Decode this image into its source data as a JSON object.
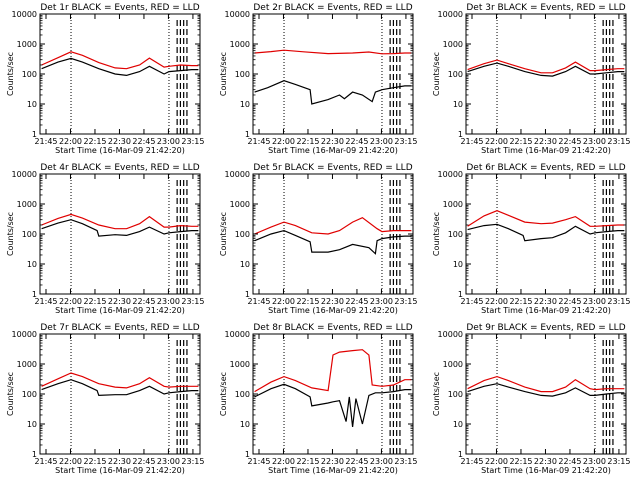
{
  "colors": {
    "events": "#000000",
    "lld": "#e00000",
    "axes": "#000000",
    "background": "#ffffff"
  },
  "chart_data": [
    {
      "type": "line",
      "title": "Det 1r BLACK = Events, RED = LLD",
      "xlabel": "Start Time (16-Mar-09 21:42:20)",
      "ylabel": "Counts/sec",
      "yscale": "log",
      "ylim": [
        1,
        10000
      ],
      "xlim_minutes": [
        -1,
        97
      ],
      "x_tick_labels": [
        "21:45",
        "22:00",
        "22:15",
        "22:30",
        "22:45",
        "23:00",
        "23:15"
      ],
      "y_tick_labels": [
        "1",
        "10",
        "100",
        "1000",
        "10000"
      ],
      "vlines_dotted": [
        18,
        78
      ],
      "dashed_minutes": [
        83,
        85,
        87,
        89
      ],
      "series": [
        {
          "name": "BLACK = Events",
          "x": [
            0,
            10,
            18,
            25,
            35,
            45,
            52,
            60,
            66,
            75,
            78,
            85,
            92,
            96
          ],
          "y": [
            150,
            250,
            330,
            250,
            150,
            100,
            90,
            120,
            180,
            100,
            120,
            130,
            140,
            140
          ]
        },
        {
          "name": "RED = LLD",
          "x": [
            0,
            10,
            18,
            25,
            35,
            45,
            52,
            60,
            66,
            75,
            78,
            85,
            92,
            96
          ],
          "y": [
            200,
            350,
            550,
            420,
            240,
            160,
            150,
            200,
            340,
            170,
            180,
            200,
            190,
            190
          ]
        }
      ]
    },
    {
      "type": "line",
      "title": "Det 2r BLACK = Events, RED = LLD",
      "xlabel": "Start Time (16-Mar-09 21:42:20)",
      "ylabel": "Counts/sec",
      "yscale": "log",
      "ylim": [
        1,
        10000
      ],
      "xlim_minutes": [
        -1,
        97
      ],
      "x_tick_labels": [
        "21:45",
        "22:00",
        "22:15",
        "22:30",
        "22:45",
        "23:00",
        "23:15"
      ],
      "y_tick_labels": [
        "1",
        "10",
        "100",
        "1000",
        "10000"
      ],
      "vlines_dotted": [
        18,
        78
      ],
      "dashed_minutes": [
        83,
        85,
        87,
        89
      ],
      "series": [
        {
          "name": "BLACK = Events",
          "x": [
            0,
            8,
            18,
            25,
            34,
            35,
            45,
            52,
            55,
            60,
            66,
            72,
            74,
            78,
            85,
            92,
            96
          ],
          "y": [
            25,
            35,
            60,
            45,
            30,
            10,
            14,
            20,
            15,
            25,
            20,
            12,
            25,
            30,
            35,
            40,
            40
          ]
        },
        {
          "name": "RED = LLD",
          "x": [
            0,
            10,
            18,
            30,
            45,
            60,
            70,
            78,
            85,
            92,
            96
          ],
          "y": [
            500,
            560,
            620,
            550,
            480,
            500,
            540,
            470,
            480,
            500,
            500
          ]
        }
      ]
    },
    {
      "type": "line",
      "title": "Det 3r BLACK = Events, RED = LLD",
      "xlabel": "Start Time (16-Mar-09 21:42:20)",
      "ylabel": "Counts/sec",
      "yscale": "log",
      "ylim": [
        1,
        10000
      ],
      "xlim_minutes": [
        -1,
        97
      ],
      "x_tick_labels": [
        "21:45",
        "22:00",
        "22:15",
        "22:30",
        "22:45",
        "23:00",
        "23:15"
      ],
      "y_tick_labels": [
        "1",
        "10",
        "100",
        "1000",
        "10000"
      ],
      "vlines_dotted": [
        18,
        78
      ],
      "dashed_minutes": [
        83,
        85,
        87,
        89
      ],
      "series": [
        {
          "name": "BLACK = Events",
          "x": [
            0,
            10,
            18,
            25,
            35,
            45,
            52,
            60,
            66,
            75,
            78,
            85,
            92,
            96
          ],
          "y": [
            120,
            180,
            230,
            180,
            120,
            90,
            85,
            120,
            180,
            100,
            100,
            110,
            120,
            120
          ]
        },
        {
          "name": "RED = LLD",
          "x": [
            0,
            10,
            18,
            25,
            35,
            45,
            52,
            60,
            66,
            75,
            78,
            85,
            92,
            96
          ],
          "y": [
            140,
            220,
            290,
            220,
            150,
            110,
            110,
            160,
            250,
            130,
            130,
            140,
            150,
            150
          ]
        }
      ]
    },
    {
      "type": "line",
      "title": "Det 4r BLACK = Events, RED = LLD",
      "xlabel": "Start Time (16-Mar-09 21:42:20)",
      "ylabel": "Counts/sec",
      "yscale": "log",
      "ylim": [
        1,
        10000
      ],
      "xlim_minutes": [
        -1,
        97
      ],
      "x_tick_labels": [
        "21:45",
        "22:00",
        "22:15",
        "22:30",
        "22:45",
        "23:00",
        "23:15"
      ],
      "y_tick_labels": [
        "1",
        "10",
        "100",
        "1000",
        "10000"
      ],
      "vlines_dotted": [
        18,
        78
      ],
      "dashed_minutes": [
        83,
        85,
        87,
        89
      ],
      "series": [
        {
          "name": "BLACK = Events",
          "x": [
            0,
            10,
            18,
            25,
            34,
            35,
            45,
            52,
            60,
            66,
            75,
            78,
            85,
            92,
            96
          ],
          "y": [
            150,
            230,
            300,
            220,
            130,
            85,
            95,
            90,
            120,
            170,
            100,
            110,
            120,
            130,
            130
          ]
        },
        {
          "name": "RED = LLD",
          "x": [
            0,
            10,
            18,
            25,
            35,
            45,
            52,
            60,
            66,
            75,
            78,
            85,
            92,
            96
          ],
          "y": [
            200,
            330,
            450,
            340,
            200,
            150,
            150,
            220,
            380,
            170,
            170,
            190,
            180,
            180
          ]
        }
      ]
    },
    {
      "type": "line",
      "title": "Det 5r BLACK = Events, RED = LLD",
      "xlabel": "Start Time (16-Mar-09 21:42:20)",
      "ylabel": "Counts/sec",
      "yscale": "log",
      "ylim": [
        1,
        10000
      ],
      "xlim_minutes": [
        -1,
        97
      ],
      "x_tick_labels": [
        "21:45",
        "22:00",
        "22:15",
        "22:30",
        "22:45",
        "23:00",
        "23:15"
      ],
      "y_tick_labels": [
        "1",
        "10",
        "100",
        "1000",
        "10000"
      ],
      "vlines_dotted": [
        18,
        78
      ],
      "dashed_minutes": [
        83,
        85,
        87,
        89
      ],
      "series": [
        {
          "name": "BLACK = Events",
          "x": [
            0,
            10,
            18,
            25,
            34,
            35,
            45,
            52,
            60,
            70,
            74,
            75,
            78,
            85,
            92,
            96
          ],
          "y": [
            60,
            100,
            130,
            90,
            55,
            25,
            25,
            30,
            45,
            35,
            22,
            60,
            70,
            80,
            85,
            85
          ]
        },
        {
          "name": "RED = LLD",
          "x": [
            0,
            10,
            18,
            25,
            35,
            45,
            52,
            60,
            66,
            75,
            78,
            85,
            92,
            96
          ],
          "y": [
            100,
            170,
            250,
            190,
            110,
            100,
            130,
            250,
            350,
            150,
            120,
            130,
            130,
            130
          ]
        }
      ]
    },
    {
      "type": "line",
      "title": "Det 6r BLACK = Events, RED = LLD",
      "xlabel": "Start Time (16-Mar-09 21:42:20)",
      "ylabel": "Counts/sec",
      "yscale": "log",
      "ylim": [
        1,
        10000
      ],
      "xlim_minutes": [
        -1,
        97
      ],
      "x_tick_labels": [
        "21:45",
        "22:00",
        "22:15",
        "22:30",
        "22:45",
        "23:00",
        "23:15"
      ],
      "y_tick_labels": [
        "1",
        "10",
        "100",
        "1000",
        "10000"
      ],
      "vlines_dotted": [
        18,
        78
      ],
      "dashed_minutes": [
        83,
        85,
        87,
        89
      ],
      "series": [
        {
          "name": "BLACK = Events",
          "x": [
            0,
            10,
            18,
            25,
            34,
            35,
            45,
            52,
            60,
            66,
            75,
            78,
            85,
            92,
            96
          ],
          "y": [
            140,
            190,
            210,
            150,
            90,
            60,
            70,
            75,
            110,
            180,
            100,
            110,
            120,
            130,
            130
          ]
        },
        {
          "name": "RED = LLD",
          "x": [
            0,
            10,
            18,
            25,
            35,
            45,
            52,
            60,
            66,
            75,
            78,
            85,
            92,
            96
          ],
          "y": [
            180,
            400,
            600,
            420,
            250,
            220,
            230,
            300,
            380,
            180,
            180,
            190,
            200,
            200
          ]
        }
      ]
    },
    {
      "type": "line",
      "title": "Det 7r BLACK = Events, RED = LLD",
      "xlabel": "Start Time (16-Mar-09 21:42:20)",
      "ylabel": "Counts/sec",
      "yscale": "log",
      "ylim": [
        1,
        10000
      ],
      "xlim_minutes": [
        -1,
        97
      ],
      "x_tick_labels": [
        "21:45",
        "22:00",
        "22:15",
        "22:30",
        "22:45",
        "23:00",
        "23:15"
      ],
      "y_tick_labels": [
        "1",
        "10",
        "100",
        "1000",
        "10000"
      ],
      "vlines_dotted": [
        18,
        78
      ],
      "dashed_minutes": [
        83,
        85,
        87,
        89
      ],
      "series": [
        {
          "name": "BLACK = Events",
          "x": [
            0,
            10,
            18,
            25,
            34,
            35,
            45,
            52,
            60,
            66,
            75,
            78,
            85,
            92,
            96
          ],
          "y": [
            140,
            220,
            300,
            220,
            130,
            90,
            95,
            95,
            130,
            180,
            100,
            110,
            120,
            130,
            130
          ]
        },
        {
          "name": "RED = LLD",
          "x": [
            0,
            10,
            18,
            25,
            35,
            45,
            52,
            60,
            66,
            75,
            78,
            85,
            92,
            96
          ],
          "y": [
            180,
            320,
            500,
            380,
            220,
            170,
            160,
            220,
            350,
            180,
            170,
            180,
            180,
            180
          ]
        }
      ]
    },
    {
      "type": "line",
      "title": "Det 8r BLACK = Events, RED = LLD",
      "xlabel": "Start Time (16-Mar-09 21:42:20)",
      "ylabel": "Counts/sec",
      "yscale": "log",
      "ylim": [
        1,
        10000
      ],
      "xlim_minutes": [
        -1,
        97
      ],
      "x_tick_labels": [
        "21:45",
        "22:00",
        "22:15",
        "22:30",
        "22:45",
        "23:00",
        "23:15"
      ],
      "y_tick_labels": [
        "1",
        "10",
        "100",
        "1000",
        "10000"
      ],
      "vlines_dotted": [
        18,
        78
      ],
      "dashed_minutes": [
        83,
        85,
        87,
        89
      ],
      "series": [
        {
          "name": "BLACK = Events",
          "x": [
            0,
            10,
            18,
            25,
            34,
            35,
            45,
            48,
            52,
            56,
            58,
            60,
            62,
            66,
            70,
            74,
            78,
            85,
            92,
            96
          ],
          "y": [
            80,
            150,
            210,
            150,
            80,
            40,
            50,
            55,
            60,
            12,
            80,
            8,
            70,
            10,
            90,
            110,
            110,
            120,
            140,
            140
          ]
        },
        {
          "name": "RED = LLD",
          "x": [
            0,
            10,
            18,
            25,
            35,
            45,
            48,
            52,
            60,
            66,
            70,
            72,
            78,
            85,
            92,
            96
          ],
          "y": [
            120,
            250,
            380,
            280,
            160,
            130,
            2000,
            2500,
            2800,
            3000,
            2000,
            200,
            180,
            200,
            300,
            300
          ]
        }
      ]
    },
    {
      "type": "line",
      "title": "Det 9r BLACK = Events, RED = LLD",
      "xlabel": "Start Time (16-Mar-09 21:42:20)",
      "ylabel": "Counts/sec",
      "yscale": "log",
      "ylim": [
        1,
        10000
      ],
      "xlim_minutes": [
        -1,
        97
      ],
      "x_tick_labels": [
        "21:45",
        "22:00",
        "22:15",
        "22:30",
        "22:45",
        "23:00",
        "23:15"
      ],
      "y_tick_labels": [
        "1",
        "10",
        "100",
        "1000",
        "10000"
      ],
      "vlines_dotted": [
        18,
        78
      ],
      "dashed_minutes": [
        83,
        85,
        87,
        89
      ],
      "series": [
        {
          "name": "BLACK = Events",
          "x": [
            0,
            10,
            18,
            25,
            35,
            45,
            52,
            60,
            66,
            75,
            78,
            85,
            92,
            96
          ],
          "y": [
            120,
            180,
            220,
            170,
            120,
            90,
            85,
            110,
            160,
            90,
            90,
            100,
            110,
            110
          ]
        },
        {
          "name": "RED = LLD",
          "x": [
            0,
            10,
            18,
            25,
            35,
            45,
            52,
            60,
            66,
            75,
            78,
            85,
            92,
            96
          ],
          "y": [
            150,
            280,
            380,
            280,
            170,
            120,
            120,
            170,
            300,
            150,
            140,
            150,
            150,
            150
          ]
        }
      ]
    }
  ]
}
